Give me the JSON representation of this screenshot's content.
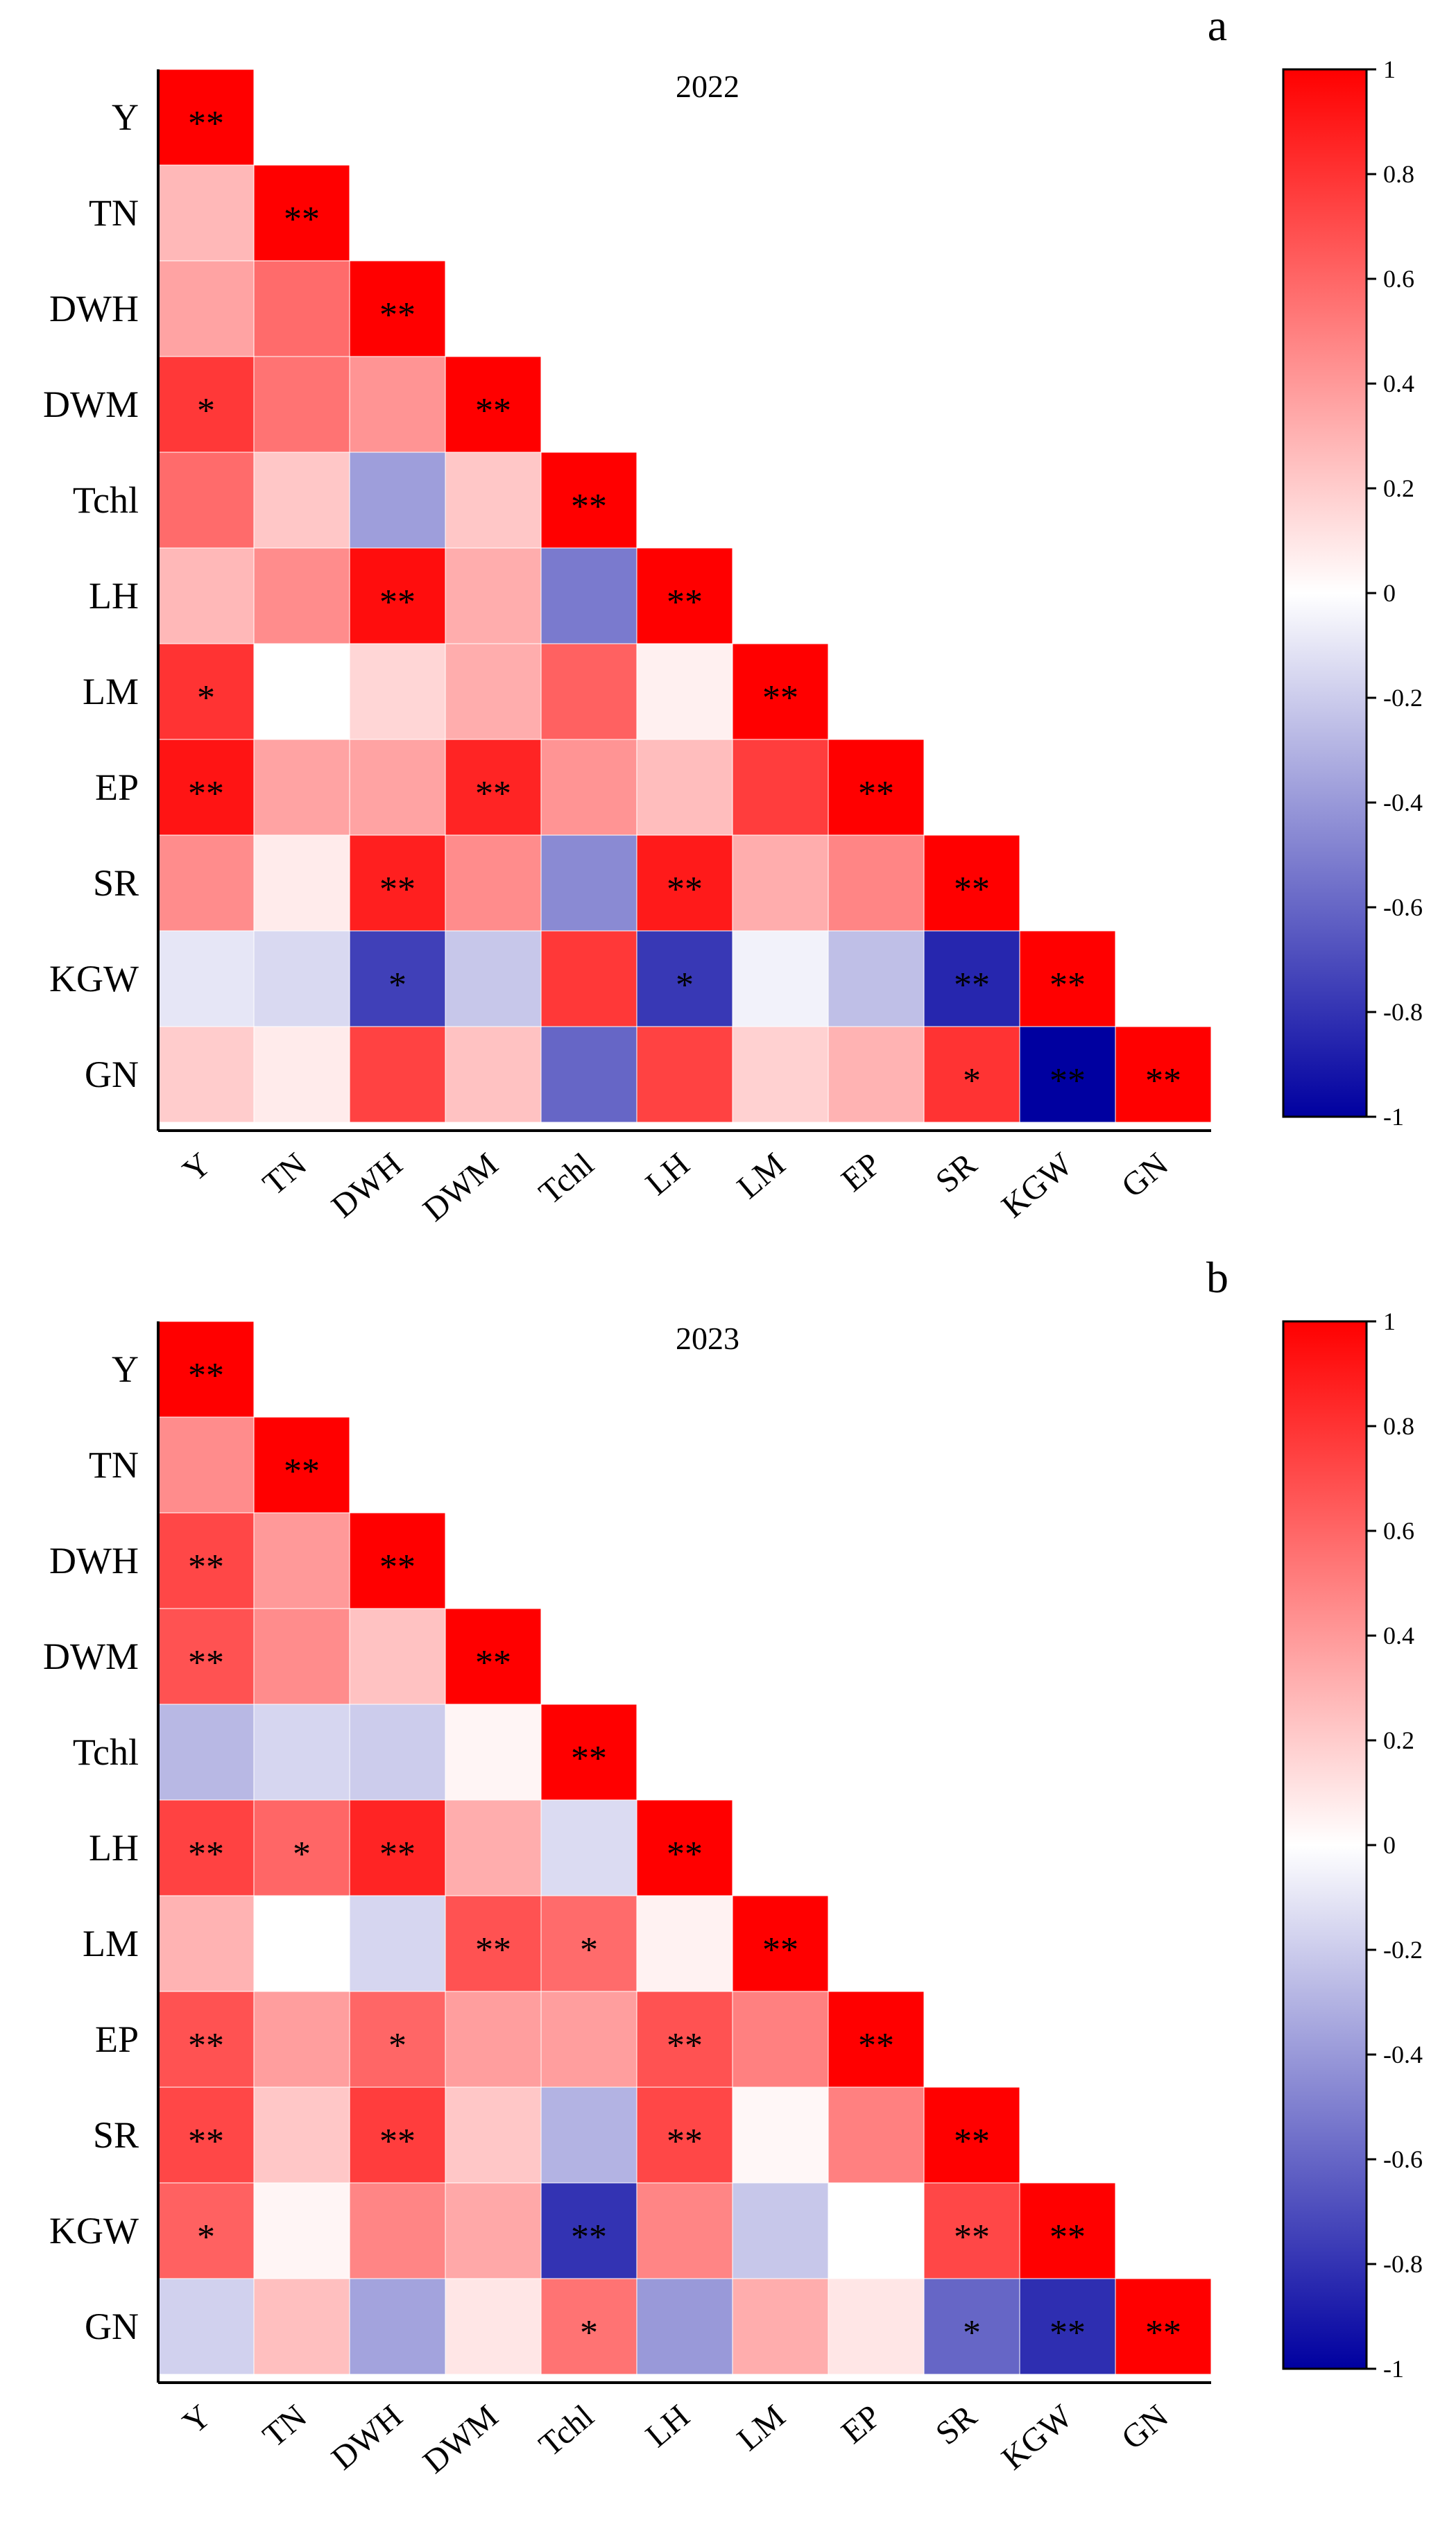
{
  "chart_data": [
    {
      "type": "heatmap",
      "panel_label": "a",
      "title": "2022",
      "variables": [
        "Y",
        "TN",
        "DWH",
        "DWM",
        "Tchl",
        "LH",
        "LM",
        "EP",
        "SR",
        "KGW",
        "GN"
      ],
      "value_range": [
        -1,
        1
      ],
      "colorbar_ticks": [
        "1",
        "0.8",
        "0.6",
        "0.4",
        "0.2",
        "0",
        "-0.2",
        "-0.4",
        "-0.6",
        "-0.8",
        "-1"
      ],
      "colorbar_tick_values": [
        1,
        0.8,
        0.6,
        0.4,
        0.2,
        0,
        -0.2,
        -0.4,
        -0.6,
        -0.8,
        -1
      ],
      "correlations": [
        [
          1.0
        ],
        [
          0.28,
          1.0
        ],
        [
          0.36,
          0.58,
          1.0
        ],
        [
          0.78,
          0.55,
          0.42,
          1.0
        ],
        [
          0.58,
          0.22,
          -0.38,
          0.22,
          1.0
        ],
        [
          0.28,
          0.45,
          0.95,
          0.32,
          -0.52,
          1.0
        ],
        [
          0.8,
          0.0,
          0.16,
          0.32,
          0.62,
          0.06,
          1.0
        ],
        [
          0.92,
          0.36,
          0.36,
          0.86,
          0.42,
          0.26,
          0.76,
          1.0
        ],
        [
          0.45,
          0.08,
          0.88,
          0.45,
          -0.46,
          0.9,
          0.32,
          0.48,
          1.0
        ],
        [
          -0.1,
          -0.15,
          -0.75,
          -0.22,
          0.78,
          -0.78,
          -0.05,
          -0.25,
          -0.85,
          1.0
        ],
        [
          0.2,
          0.08,
          0.74,
          0.24,
          -0.6,
          0.74,
          0.18,
          0.3,
          0.8,
          -1.0,
          1.0
        ]
      ],
      "significance": [
        [
          "**"
        ],
        [
          "",
          "**"
        ],
        [
          "",
          "",
          "**"
        ],
        [
          "*",
          "",
          "",
          "**"
        ],
        [
          "",
          "",
          "",
          "",
          "**"
        ],
        [
          "",
          "",
          "**",
          "",
          "",
          "**"
        ],
        [
          "*",
          "",
          "",
          "",
          "",
          "",
          "**"
        ],
        [
          "**",
          "",
          "",
          "**",
          "",
          "",
          "",
          "**"
        ],
        [
          "",
          "",
          "**",
          "",
          "",
          "**",
          "",
          "",
          "**"
        ],
        [
          "",
          "",
          "*",
          "",
          "",
          "*",
          "",
          "",
          "**",
          "**"
        ],
        [
          "",
          "",
          "",
          "",
          "",
          "",
          "",
          "",
          "*",
          "**",
          "**"
        ]
      ]
    },
    {
      "type": "heatmap",
      "panel_label": "b",
      "title": "2023",
      "variables": [
        "Y",
        "TN",
        "DWH",
        "DWM",
        "Tchl",
        "LH",
        "LM",
        "EP",
        "SR",
        "KGW",
        "GN"
      ],
      "value_range": [
        -1,
        1
      ],
      "colorbar_ticks": [
        "1",
        "0.8",
        "0.6",
        "0.4",
        "0.2",
        "0",
        "-0.2",
        "-0.4",
        "-0.6",
        "-0.8",
        "-1"
      ],
      "colorbar_tick_values": [
        1,
        0.8,
        0.6,
        0.4,
        0.2,
        0,
        -0.2,
        -0.4,
        -0.6,
        -0.8,
        -1
      ],
      "correlations": [
        [
          1.0
        ],
        [
          0.45,
          1.0
        ],
        [
          0.72,
          0.4,
          1.0
        ],
        [
          0.68,
          0.45,
          0.24,
          1.0
        ],
        [
          -0.28,
          -0.16,
          -0.2,
          0.04,
          1.0
        ],
        [
          0.74,
          0.6,
          0.86,
          0.32,
          -0.14,
          1.0
        ],
        [
          0.3,
          0.0,
          -0.16,
          0.68,
          0.58,
          0.05,
          1.0
        ],
        [
          0.68,
          0.38,
          0.6,
          0.38,
          0.38,
          0.68,
          0.5,
          1.0
        ],
        [
          0.72,
          0.22,
          0.76,
          0.22,
          -0.3,
          0.72,
          0.03,
          0.5,
          1.0
        ],
        [
          0.62,
          0.04,
          0.48,
          0.34,
          -0.8,
          0.48,
          -0.22,
          0.0,
          0.72,
          1.0
        ],
        [
          -0.18,
          0.25,
          -0.36,
          0.1,
          0.55,
          -0.4,
          0.32,
          0.1,
          -0.6,
          -0.82,
          1.0
        ]
      ],
      "significance": [
        [
          "**"
        ],
        [
          "",
          "**"
        ],
        [
          "**",
          "",
          "**"
        ],
        [
          "**",
          "",
          "",
          "**"
        ],
        [
          "",
          "",
          "",
          "",
          "**"
        ],
        [
          "**",
          "*",
          "**",
          "",
          "",
          "**"
        ],
        [
          "",
          "",
          "",
          "**",
          "*",
          "",
          "**"
        ],
        [
          "**",
          "",
          "*",
          "",
          "",
          "**",
          "",
          "**"
        ],
        [
          "**",
          "",
          "**",
          "",
          "",
          "**",
          "",
          "",
          "**"
        ],
        [
          "*",
          "",
          "",
          "",
          "**",
          "",
          "",
          "",
          "**",
          "**"
        ],
        [
          "",
          "",
          "",
          "",
          "*",
          "",
          "",
          "",
          "*",
          "**",
          "**"
        ]
      ]
    }
  ]
}
